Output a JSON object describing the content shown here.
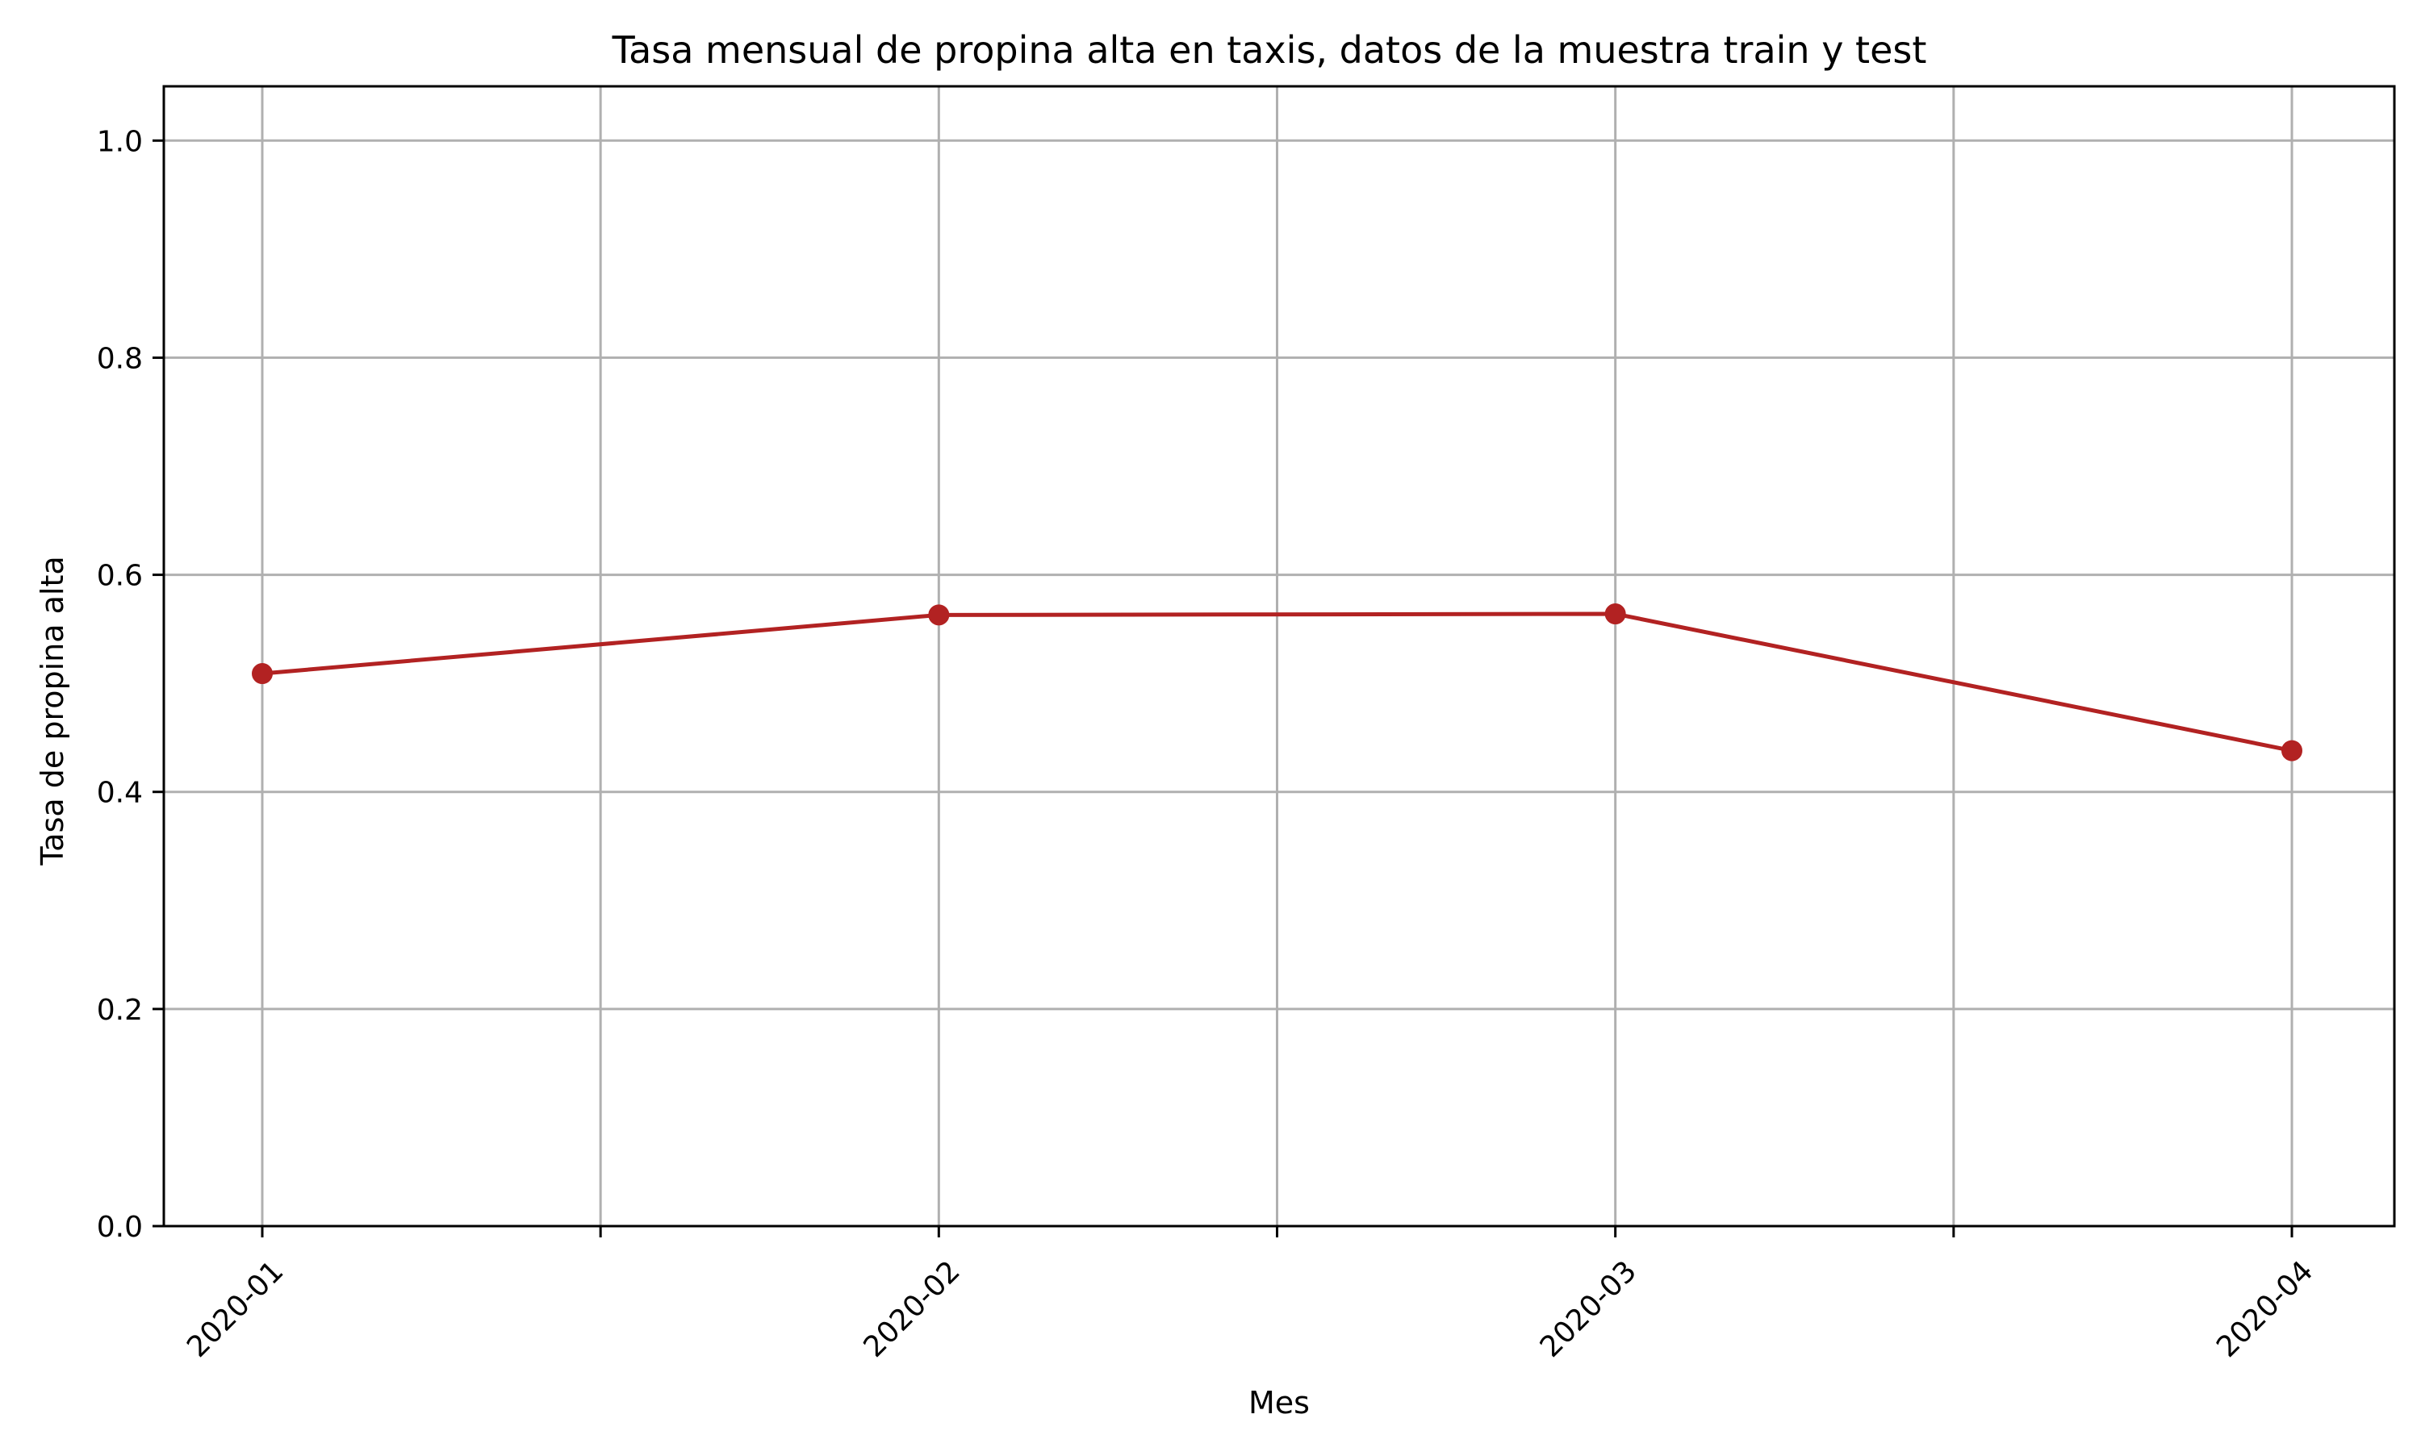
{
  "chart_data": {
    "type": "line",
    "title": "Tasa mensual de propina alta en taxis, datos de la muestra train y test",
    "xlabel": "Mes",
    "ylabel": "Tasa de propina alta",
    "x": [
      "2020-01",
      "2020-02",
      "2020-03",
      "2020-04"
    ],
    "xticks": [
      "2020-01",
      "2020-02",
      "2020-03",
      "2020-04"
    ],
    "xlim": [
      "2020-01",
      "2020-04"
    ],
    "series": [
      {
        "values": [
          0.509,
          0.563,
          0.564,
          0.438
        ],
        "color": "#b22222",
        "marker": "circle"
      }
    ],
    "ylim": [
      0,
      1.05
    ],
    "yticks": [
      "0.0",
      "0.2",
      "0.4",
      "0.6",
      "0.8",
      "1.0"
    ],
    "grid": true,
    "minor_x_ticks": "between months",
    "xtick_rotation": 45
  }
}
